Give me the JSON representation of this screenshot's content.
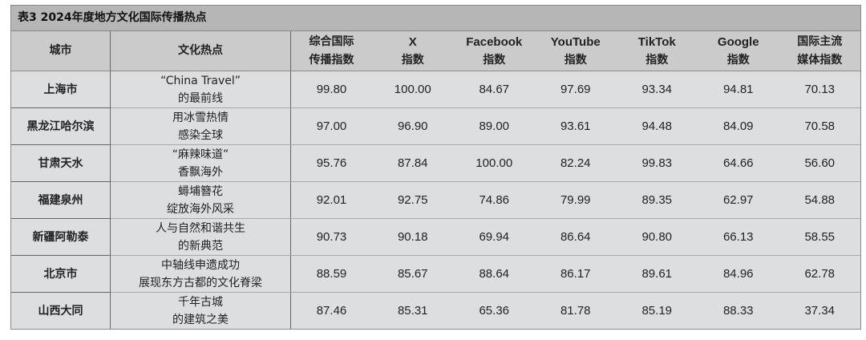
{
  "title": "表3 2024年度地方文化国际传播热点",
  "headers": [
    {
      "l1": "城市",
      "l2": ""
    },
    {
      "l1": "文化热点",
      "l2": ""
    },
    {
      "l1": "综合国际",
      "l2": "传播指数"
    },
    {
      "l1": "X",
      "l2": "指数"
    },
    {
      "l1": "Facebook",
      "l2": "指数"
    },
    {
      "l1": "YouTube",
      "l2": "指数"
    },
    {
      "l1": "TikTok",
      "l2": "指数"
    },
    {
      "l1": "Google",
      "l2": "指数"
    },
    {
      "l1": "国际主流",
      "l2": "媒体指数"
    }
  ],
  "rows": [
    {
      "city": "上海市",
      "h1": "“China Travel”",
      "h2": "的最前线",
      "v": [
        "99.80",
        "100.00",
        "84.67",
        "97.69",
        "93.34",
        "94.81",
        "70.13"
      ]
    },
    {
      "city": "黑龙江哈尔滨",
      "h1": "用冰雪热情",
      "h2": "感染全球",
      "v": [
        "97.00",
        "96.90",
        "89.00",
        "93.61",
        "94.48",
        "84.09",
        "70.58"
      ]
    },
    {
      "city": "甘肃天水",
      "h1": "“麻辣味道”",
      "h2": "香飘海外",
      "v": [
        "95.76",
        "87.84",
        "100.00",
        "82.24",
        "99.83",
        "64.66",
        "56.60"
      ]
    },
    {
      "city": "福建泉州",
      "h1": "蟳埔簪花",
      "h2": "绽放海外风采",
      "v": [
        "92.01",
        "92.75",
        "74.86",
        "79.99",
        "89.35",
        "62.97",
        "54.88"
      ]
    },
    {
      "city": "新疆阿勒泰",
      "h1": "人与自然和谐共生",
      "h2": "的新典范",
      "v": [
        "90.73",
        "90.18",
        "69.94",
        "86.64",
        "90.80",
        "66.13",
        "58.55"
      ]
    },
    {
      "city": "北京市",
      "h1": "中轴线申遗成功",
      "h2": "展现东方古都的文化脊梁",
      "v": [
        "88.59",
        "85.67",
        "88.64",
        "86.17",
        "89.61",
        "84.96",
        "62.78"
      ]
    },
    {
      "city": "山西大同",
      "h1": "千年古城",
      "h2": "的建筑之美",
      "v": [
        "87.46",
        "85.31",
        "65.36",
        "81.78",
        "85.19",
        "88.33",
        "37.34"
      ]
    }
  ]
}
